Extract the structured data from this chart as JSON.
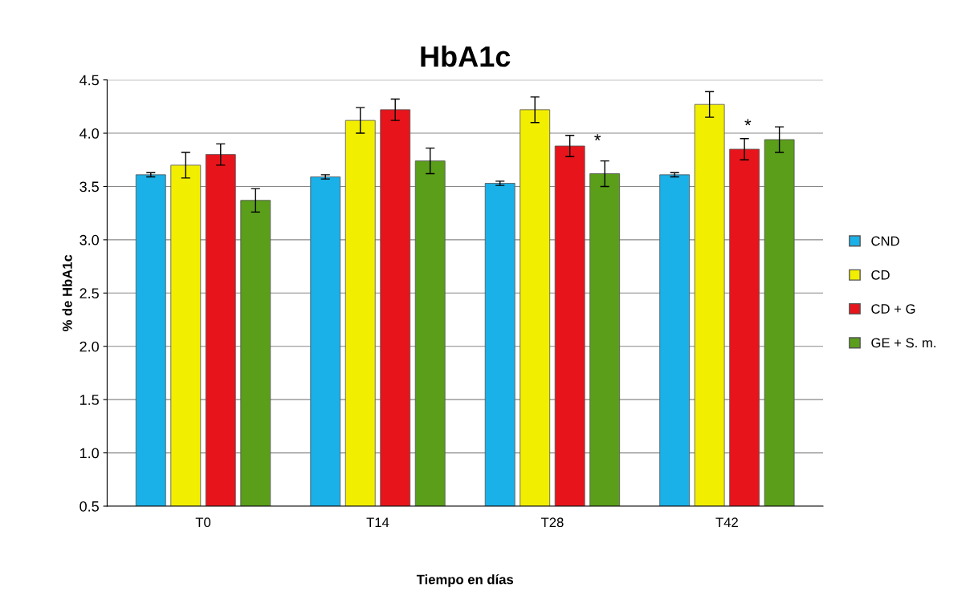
{
  "chart_data": {
    "type": "bar",
    "title": "HbA1c",
    "xlabel": "Tiempo en días",
    "ylabel": "% de HbA1c",
    "categories": [
      "T0",
      "T14",
      "T28",
      "T42"
    ],
    "series": [
      {
        "name": "CND",
        "color": "#1ab0e8",
        "values": [
          3.61,
          3.59,
          3.53,
          3.61
        ],
        "errors": [
          0.02,
          0.02,
          0.02,
          0.02
        ]
      },
      {
        "name": "CD",
        "color": "#f2ee00",
        "values": [
          3.7,
          4.12,
          4.22,
          4.27
        ],
        "errors": [
          0.12,
          0.12,
          0.12,
          0.12
        ]
      },
      {
        "name": "CD + G",
        "color": "#e8141b",
        "values": [
          3.8,
          4.22,
          3.88,
          3.85
        ],
        "errors": [
          0.1,
          0.1,
          0.1,
          0.1
        ]
      },
      {
        "name": "GE + S. m.",
        "color": "#5a9e1a",
        "values": [
          3.37,
          3.74,
          3.62,
          3.94
        ],
        "errors": [
          0.11,
          0.12,
          0.12,
          0.12
        ]
      }
    ],
    "ylim": [
      0.5,
      4.5
    ],
    "yticks": [
      {
        "value": 0.5,
        "label": "0.5"
      },
      {
        "value": 1.0,
        "label": "1.0"
      },
      {
        "value": 1.5,
        "label": "1.5"
      },
      {
        "value": 2.0,
        "label": "2.0"
      },
      {
        "value": 2.5,
        "label": "2.5"
      },
      {
        "value": 3.0,
        "label": "3.0"
      },
      {
        "value": 3.5,
        "label": "3.5"
      },
      {
        "value": 4.0,
        "label": "4.0"
      },
      {
        "value": 4.5,
        "label": "4.5"
      }
    ],
    "grid": "y",
    "legend": "right",
    "annotations": [
      "*",
      "*"
    ]
  }
}
